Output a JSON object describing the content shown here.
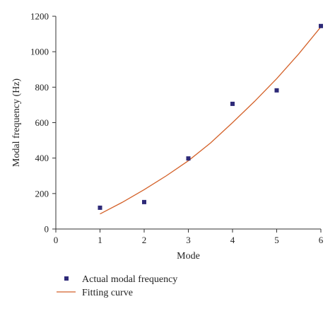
{
  "chart_data": {
    "type": "scatter",
    "title": "",
    "xlabel": "Mode",
    "ylabel": "Modal frequency (Hz)",
    "xlim": [
      0,
      6
    ],
    "ylim": [
      0,
      1200
    ],
    "x_ticks": [
      0,
      1,
      2,
      3,
      4,
      5,
      6
    ],
    "y_ticks": [
      0,
      200,
      400,
      600,
      800,
      1000,
      1200
    ],
    "grid": false,
    "legend_position": "bottom-left",
    "series": [
      {
        "name": "Actual modal frequency",
        "kind": "scatter",
        "marker": "square",
        "color": "#2e2a78",
        "x": [
          1,
          2,
          3,
          4,
          5,
          6
        ],
        "y": [
          120,
          152,
          398,
          706,
          782,
          1145
        ]
      },
      {
        "name": "Fitting curve",
        "kind": "line",
        "color": "#d4622a",
        "x": [
          1,
          1.5,
          2,
          2.5,
          3,
          3.5,
          4,
          4.5,
          5,
          5.5,
          6
        ],
        "y": [
          85,
          150,
          222,
          300,
          385,
          485,
          600,
          720,
          848,
          988,
          1140
        ]
      }
    ]
  }
}
